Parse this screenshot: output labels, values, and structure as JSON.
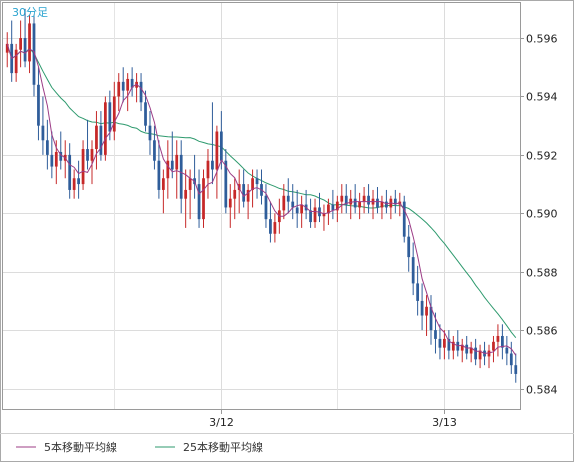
{
  "chart_data": {
    "type": "candlestick",
    "period_label": "30分足",
    "yticks": [
      "0.596",
      "0.594",
      "0.592",
      "0.590",
      "0.588",
      "0.586",
      "0.584"
    ],
    "ylim": [
      0.5833,
      0.5972
    ],
    "xticks": [
      {
        "label": "3/12",
        "index": 48
      },
      {
        "label": "3/13",
        "index": 98
      }
    ],
    "grid": true,
    "legend_position": "bottom-left",
    "series_colors": {
      "up": "#c62828",
      "down": "#2f5d9a",
      "ma5": "#9c3c86",
      "ma25": "#2e9a6e"
    },
    "series": [
      {
        "name": "5本移動平均線",
        "color": "#9c3c86"
      },
      {
        "name": "25本移動平均線",
        "color": "#2e9a6e"
      }
    ],
    "ohlc": [
      [
        0.5955,
        0.5962,
        0.595,
        0.5958
      ],
      [
        0.5958,
        0.5966,
        0.5945,
        0.5948
      ],
      [
        0.5948,
        0.5958,
        0.5945,
        0.5956
      ],
      [
        0.5956,
        0.5966,
        0.595,
        0.596
      ],
      [
        0.596,
        0.597,
        0.595,
        0.5952
      ],
      [
        0.5952,
        0.5968,
        0.5948,
        0.5965
      ],
      [
        0.5965,
        0.5968,
        0.594,
        0.5944
      ],
      [
        0.5944,
        0.595,
        0.5925,
        0.593
      ],
      [
        0.593,
        0.594,
        0.592,
        0.5925
      ],
      [
        0.5925,
        0.5932,
        0.5915,
        0.592
      ],
      [
        0.592,
        0.5928,
        0.5912,
        0.5916
      ],
      [
        0.5916,
        0.5925,
        0.591,
        0.5921
      ],
      [
        0.5921,
        0.5928,
        0.5915,
        0.5918
      ],
      [
        0.5918,
        0.5925,
        0.5912,
        0.592
      ],
      [
        0.592,
        0.5924,
        0.5905,
        0.5908
      ],
      [
        0.5908,
        0.5915,
        0.5905,
        0.5912
      ],
      [
        0.5912,
        0.5918,
        0.5905,
        0.591
      ],
      [
        0.591,
        0.5925,
        0.5908,
        0.5922
      ],
      [
        0.5922,
        0.5932,
        0.5915,
        0.5918
      ],
      [
        0.5918,
        0.5925,
        0.591,
        0.5922
      ],
      [
        0.5922,
        0.5935,
        0.5915,
        0.593
      ],
      [
        0.593,
        0.5935,
        0.5918,
        0.592
      ],
      [
        0.592,
        0.594,
        0.5918,
        0.5938
      ],
      [
        0.5938,
        0.5942,
        0.5925,
        0.5928
      ],
      [
        0.5928,
        0.5945,
        0.5925,
        0.594
      ],
      [
        0.594,
        0.5948,
        0.5935,
        0.5945
      ],
      [
        0.5945,
        0.595,
        0.5938,
        0.5942
      ],
      [
        0.5942,
        0.5948,
        0.5935,
        0.5946
      ],
      [
        0.5946,
        0.595,
        0.594,
        0.5943
      ],
      [
        0.5943,
        0.5948,
        0.5938,
        0.5945
      ],
      [
        0.5945,
        0.5948,
        0.5935,
        0.5938
      ],
      [
        0.5938,
        0.5942,
        0.5928,
        0.593
      ],
      [
        0.593,
        0.5935,
        0.592,
        0.5925
      ],
      [
        0.5925,
        0.593,
        0.5915,
        0.5918
      ],
      [
        0.5918,
        0.5925,
        0.5905,
        0.5908
      ],
      [
        0.5908,
        0.5915,
        0.59,
        0.5912
      ],
      [
        0.5912,
        0.5925,
        0.5905,
        0.5918
      ],
      [
        0.5918,
        0.5928,
        0.5912,
        0.5915
      ],
      [
        0.5915,
        0.5925,
        0.5905,
        0.592
      ],
      [
        0.592,
        0.5925,
        0.59,
        0.5905
      ],
      [
        0.5905,
        0.5915,
        0.5895,
        0.5908
      ],
      [
        0.5908,
        0.5915,
        0.5898,
        0.5912
      ],
      [
        0.5912,
        0.592,
        0.5905,
        0.591
      ],
      [
        0.591,
        0.5915,
        0.5895,
        0.5898
      ],
      [
        0.5898,
        0.5915,
        0.5895,
        0.5912
      ],
      [
        0.5912,
        0.5922,
        0.5905,
        0.5918
      ],
      [
        0.5918,
        0.5938,
        0.591,
        0.5915
      ],
      [
        0.5915,
        0.593,
        0.5905,
        0.5928
      ],
      [
        0.5928,
        0.5935,
        0.5915,
        0.5918
      ],
      [
        0.5918,
        0.5922,
        0.59,
        0.5902
      ],
      [
        0.5902,
        0.591,
        0.5895,
        0.5905
      ],
      [
        0.5905,
        0.5912,
        0.5898,
        0.5908
      ],
      [
        0.5908,
        0.5915,
        0.59,
        0.591
      ],
      [
        0.591,
        0.5915,
        0.5902,
        0.5904
      ],
      [
        0.5904,
        0.591,
        0.5898,
        0.5908
      ],
      [
        0.5908,
        0.5915,
        0.5902,
        0.5912
      ],
      [
        0.5912,
        0.5915,
        0.5905,
        0.591
      ],
      [
        0.591,
        0.5915,
        0.5903,
        0.5906
      ],
      [
        0.5906,
        0.591,
        0.5895,
        0.5898
      ],
      [
        0.5898,
        0.5904,
        0.589,
        0.5893
      ],
      [
        0.5893,
        0.59,
        0.589,
        0.5897
      ],
      [
        0.5897,
        0.5905,
        0.5893,
        0.5901
      ],
      [
        0.5901,
        0.591,
        0.5898,
        0.5906
      ],
      [
        0.5906,
        0.5912,
        0.59,
        0.5904
      ],
      [
        0.5904,
        0.591,
        0.5898,
        0.5902
      ],
      [
        0.5902,
        0.5908,
        0.5895,
        0.59
      ],
      [
        0.59,
        0.5906,
        0.5895,
        0.5903
      ],
      [
        0.5903,
        0.5908,
        0.5898,
        0.5901
      ],
      [
        0.5901,
        0.5905,
        0.5895,
        0.5897
      ],
      [
        0.5897,
        0.5905,
        0.5895,
        0.5902
      ],
      [
        0.5902,
        0.5907,
        0.5897,
        0.5899
      ],
      [
        0.5899,
        0.5903,
        0.5894,
        0.59
      ],
      [
        0.59,
        0.5905,
        0.5896,
        0.5903
      ],
      [
        0.5903,
        0.5908,
        0.5898,
        0.5901
      ],
      [
        0.5901,
        0.5906,
        0.5897,
        0.5904
      ],
      [
        0.5904,
        0.591,
        0.59,
        0.5906
      ],
      [
        0.5906,
        0.591,
        0.59,
        0.5903
      ],
      [
        0.5903,
        0.5908,
        0.5898,
        0.5905
      ],
      [
        0.5905,
        0.591,
        0.59,
        0.5902
      ],
      [
        0.5902,
        0.5907,
        0.5898,
        0.5904
      ],
      [
        0.5904,
        0.5909,
        0.59,
        0.5906
      ],
      [
        0.5906,
        0.591,
        0.59,
        0.5903
      ],
      [
        0.5903,
        0.5908,
        0.5898,
        0.5905
      ],
      [
        0.5905,
        0.5909,
        0.59,
        0.5902
      ],
      [
        0.5902,
        0.5906,
        0.5898,
        0.5904
      ],
      [
        0.5904,
        0.5908,
        0.59,
        0.5902
      ],
      [
        0.5902,
        0.5906,
        0.5898,
        0.5905
      ],
      [
        0.5905,
        0.5908,
        0.59,
        0.5903
      ],
      [
        0.5903,
        0.5907,
        0.5899,
        0.5904
      ],
      [
        0.5904,
        0.5906,
        0.589,
        0.5892
      ],
      [
        0.5892,
        0.5896,
        0.588,
        0.5885
      ],
      [
        0.5885,
        0.589,
        0.5872,
        0.5876
      ],
      [
        0.5876,
        0.5882,
        0.5865,
        0.587
      ],
      [
        0.587,
        0.5876,
        0.586,
        0.5865
      ],
      [
        0.5865,
        0.5872,
        0.5858,
        0.5868
      ],
      [
        0.5868,
        0.5872,
        0.5855,
        0.586
      ],
      [
        0.586,
        0.5866,
        0.5852,
        0.5857
      ],
      [
        0.5857,
        0.5862,
        0.585,
        0.5854
      ],
      [
        0.5854,
        0.586,
        0.585,
        0.5857
      ],
      [
        0.5857,
        0.586,
        0.585,
        0.5853
      ],
      [
        0.5853,
        0.5858,
        0.585,
        0.5856
      ],
      [
        0.5856,
        0.586,
        0.5851,
        0.5853
      ],
      [
        0.5853,
        0.5857,
        0.5849,
        0.5855
      ],
      [
        0.5855,
        0.5858,
        0.585,
        0.5852
      ],
      [
        0.5852,
        0.5856,
        0.5849,
        0.5854
      ],
      [
        0.5854,
        0.5857,
        0.5848,
        0.585
      ],
      [
        0.585,
        0.5855,
        0.5847,
        0.5853
      ],
      [
        0.5853,
        0.5856,
        0.5848,
        0.5851
      ],
      [
        0.5851,
        0.5855,
        0.5847,
        0.5853
      ],
      [
        0.5853,
        0.5858,
        0.5849,
        0.5856
      ],
      [
        0.5856,
        0.5862,
        0.5851,
        0.5858
      ],
      [
        0.5858,
        0.5862,
        0.585,
        0.5854
      ],
      [
        0.5854,
        0.5858,
        0.5848,
        0.5852
      ],
      [
        0.5852,
        0.5856,
        0.5845,
        0.5848
      ],
      [
        0.5848,
        0.5852,
        0.5842,
        0.5845
      ]
    ]
  }
}
